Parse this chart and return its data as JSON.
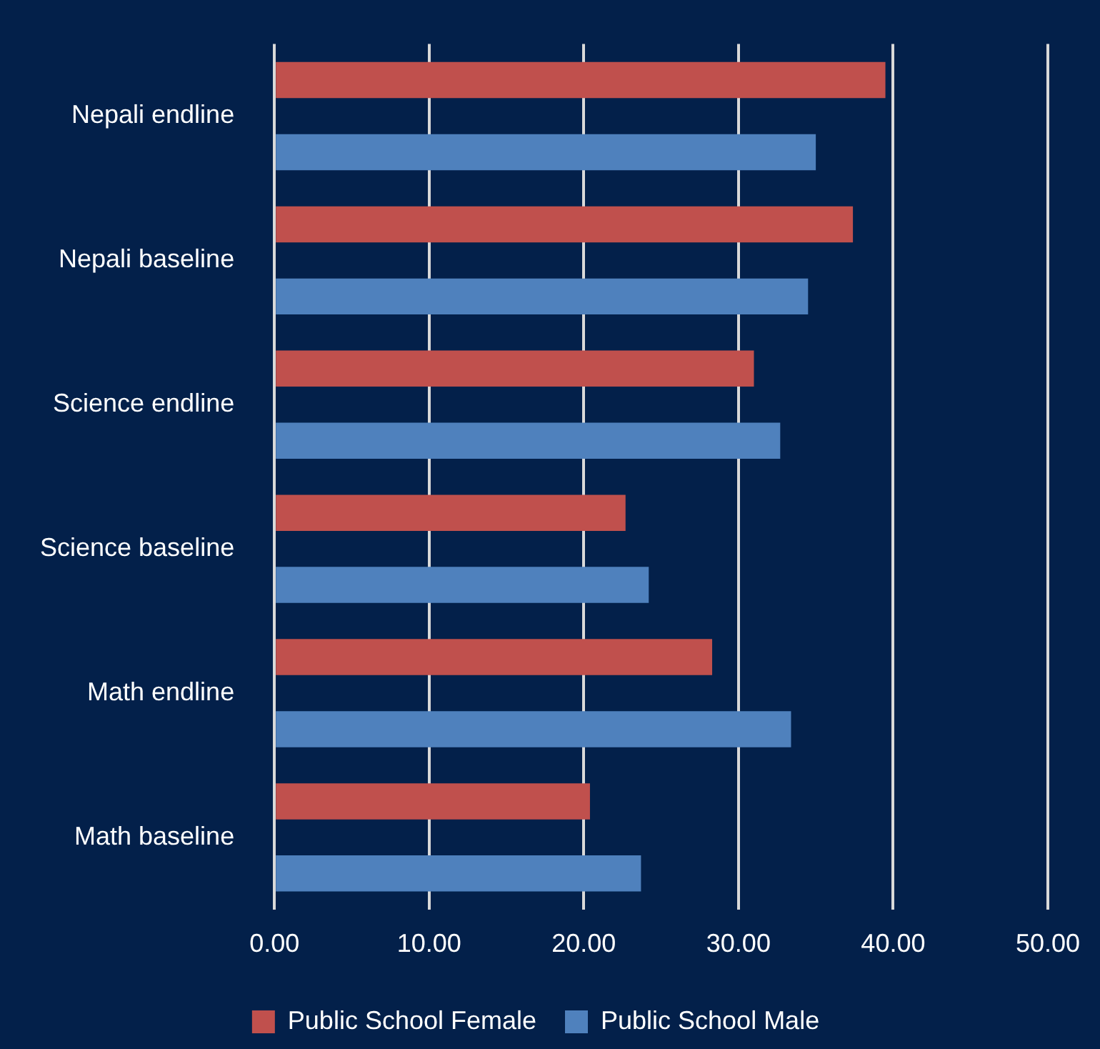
{
  "chart_data": {
    "type": "bar",
    "orientation": "horizontal",
    "categories": [
      "Nepali endline",
      "Nepali baseline",
      "Science endline",
      "Science baseline",
      "Math endline",
      "Math baseline"
    ],
    "series": [
      {
        "name": "Public School Female",
        "color": "#c0504d",
        "values": [
          39.5,
          37.4,
          31.0,
          22.7,
          28.3,
          20.4
        ]
      },
      {
        "name": "Public School Male",
        "color": "#4f81bd",
        "values": [
          35.0,
          34.5,
          32.7,
          24.2,
          33.4,
          23.7
        ]
      }
    ],
    "xlim": [
      0,
      50
    ],
    "xticks": [
      {
        "value": 0,
        "label": "0.00"
      },
      {
        "value": 10,
        "label": "10.00"
      },
      {
        "value": 20,
        "label": "20.00"
      },
      {
        "value": 30,
        "label": "30.00"
      },
      {
        "value": 40,
        "label": "40.00"
      },
      {
        "value": 50,
        "label": "50.00"
      }
    ],
    "grid": "x",
    "legend": "bottom"
  }
}
